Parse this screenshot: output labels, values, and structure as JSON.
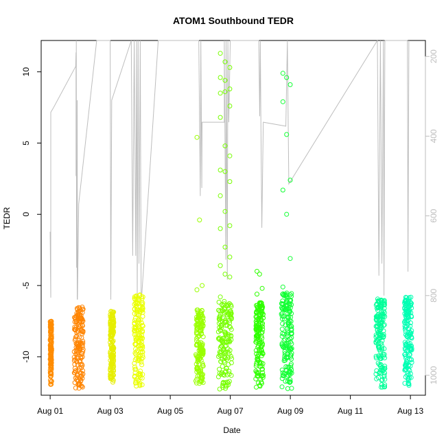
{
  "chart_data": {
    "type": "scatter",
    "title": "ATOM1 Southbound TEDR",
    "xlabel": "Date",
    "ylabel": "TEDR",
    "x_ticks": [
      "Aug 01",
      "Aug 03",
      "Aug 05",
      "Aug 07",
      "Aug 09",
      "Aug 11",
      "Aug 13"
    ],
    "y_ticks": [
      -10,
      -5,
      0,
      5,
      10
    ],
    "y2_ticks": [
      200,
      400,
      600,
      800,
      1000
    ],
    "xlim_days": [
      0.7,
      13.5
    ],
    "ylim": [
      -12.7,
      12.2
    ],
    "y2lim": [
      1050,
      160
    ],
    "colors": {
      "axis": "#000000",
      "secondary": "#bdbdbd"
    },
    "clusters": [
      {
        "day_start": 1.0,
        "day_end": 1.05,
        "ymin": -12.0,
        "ymax": -7.5,
        "color": "#ff8c00",
        "outliers": []
      },
      {
        "day_start": 1.8,
        "day_end": 2.1,
        "ymin": -12.3,
        "ymax": -6.5,
        "color": "#ff8400",
        "outliers": []
      },
      {
        "day_start": 3.0,
        "day_end": 3.12,
        "ymin": -11.8,
        "ymax": -6.7,
        "color": "#e6ee00",
        "outliers": []
      },
      {
        "day_start": 3.8,
        "day_end": 4.1,
        "ymin": -12.1,
        "ymax": -5.5,
        "color": "#eaff00",
        "outliers": []
      },
      {
        "day_start": 5.85,
        "day_end": 6.1,
        "ymin": -11.9,
        "ymax": -6.7,
        "color": "#99ff00",
        "outliers": [
          5.4,
          -0.4,
          -5.0,
          -5.3
        ]
      },
      {
        "day_start": 6.6,
        "day_end": 7.05,
        "ymin": -12.3,
        "ymax": -6.1,
        "color": "#77ff00",
        "outliers": [
          11.3,
          10.7,
          10.3,
          9.6,
          9.4,
          8.8,
          8.5,
          8.6,
          7.6,
          6.8,
          4.8,
          4.1,
          3.1,
          3.0,
          2.3,
          1.3,
          0.2,
          -0.8,
          -1.0,
          -2.3,
          -3.0,
          -3.6,
          -4.2,
          -4.4,
          -5.8
        ]
      },
      {
        "day_start": 7.85,
        "day_end": 8.1,
        "ymin": -12.2,
        "ymax": -6.2,
        "color": "#2eff00",
        "outliers": [
          -4.0,
          -4.2,
          -5.2,
          -5.6
        ]
      },
      {
        "day_start": 8.7,
        "day_end": 9.05,
        "ymin": -12.3,
        "ymax": -5.5,
        "color": "#11ff33",
        "outliers": [
          9.9,
          9.6,
          9.1,
          7.9,
          5.6,
          2.4,
          1.7,
          0.0,
          -3.1,
          -5.1
        ]
      },
      {
        "day_start": 11.85,
        "day_end": 12.15,
        "ymin": -12.2,
        "ymax": -5.9,
        "color": "#00ff99",
        "outliers": []
      },
      {
        "day_start": 12.8,
        "day_end": 13.05,
        "ymin": -12.1,
        "ymax": -5.8,
        "color": "#00ffb3",
        "outliers": []
      }
    ],
    "secondary_line": [
      [
        1.0,
        640
      ],
      [
        1.02,
        805
      ],
      [
        1.02,
        340
      ],
      [
        1.1,
        330
      ],
      [
        1.85,
        225
      ],
      [
        1.86,
        190
      ],
      [
        1.86,
        500
      ],
      [
        1.87,
        160
      ],
      [
        1.88,
        730
      ],
      [
        1.89,
        460
      ],
      [
        1.9,
        810
      ],
      [
        1.9,
        310
      ],
      [
        1.91,
        810
      ],
      [
        1.95,
        570
      ],
      [
        2.55,
        160
      ],
      [
        3.0,
        160
      ],
      [
        3.02,
        810
      ],
      [
        3.05,
        310
      ],
      [
        3.7,
        160
      ],
      [
        3.75,
        700
      ],
      [
        3.8,
        160
      ],
      [
        3.85,
        700
      ],
      [
        3.88,
        160
      ],
      [
        3.9,
        810
      ],
      [
        3.93,
        160
      ],
      [
        3.96,
        720
      ],
      [
        4.0,
        160
      ],
      [
        4.03,
        805
      ],
      [
        4.05,
        800
      ],
      [
        4.6,
        160
      ],
      [
        5.95,
        160
      ],
      [
        6.0,
        550
      ],
      [
        6.02,
        160
      ],
      [
        6.05,
        530
      ],
      [
        6.06,
        365
      ],
      [
        6.8,
        365
      ],
      [
        6.8,
        160
      ],
      [
        6.85,
        710
      ],
      [
        6.86,
        160
      ],
      [
        6.9,
        760
      ],
      [
        6.92,
        160
      ],
      [
        6.95,
        365
      ],
      [
        7.0,
        160
      ],
      [
        7.95,
        160
      ],
      [
        7.98,
        350
      ],
      [
        8.0,
        160
      ],
      [
        8.02,
        360
      ],
      [
        8.05,
        630
      ],
      [
        8.1,
        365
      ],
      [
        8.85,
        375
      ],
      [
        8.9,
        160
      ],
      [
        8.95,
        520
      ],
      [
        11.9,
        160
      ],
      [
        11.95,
        750
      ],
      [
        12.0,
        160
      ],
      [
        12.05,
        720
      ],
      [
        12.1,
        160
      ],
      [
        12.12,
        800
      ],
      [
        12.15,
        160
      ],
      [
        12.9,
        160
      ],
      [
        12.92,
        740
      ],
      [
        12.95,
        160
      ]
    ]
  }
}
